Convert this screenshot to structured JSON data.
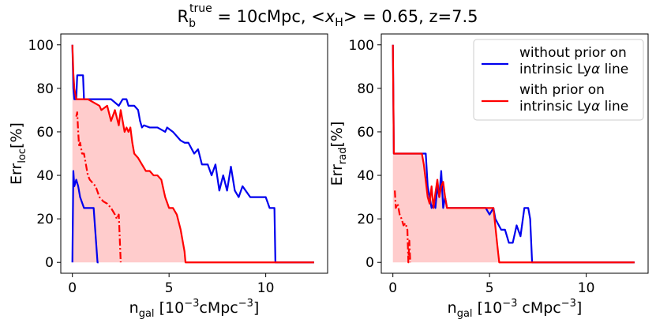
{
  "figure": {
    "title_parts": {
      "r": "R",
      "r_sub": "b",
      "r_sup": "true",
      "rest": " = 10cMpc, <",
      "x": "x",
      "x_sub": "H",
      "tail": "> = 0.65, z=7.5"
    }
  },
  "chart_data": [
    {
      "type": "line",
      "panel": "left",
      "ylabel_main": "Err",
      "ylabel_sub": "loc",
      "ylabel_unit": "[%]",
      "xlabel_main": "n",
      "xlabel_sub": "gal",
      "xlabel_unit": " [10",
      "xlabel_exp": "−3",
      "xlabel_unit2": "cMpc",
      "xlabel_exp2": "−3",
      "xlabel_close": "]",
      "xlim": [
        -0.6,
        13.2
      ],
      "ylim": [
        -5,
        105
      ],
      "xticks": [
        0,
        5,
        10
      ],
      "xtick_labels": [
        "0",
        "5",
        "10"
      ],
      "yticks": [
        0,
        20,
        40,
        60,
        80,
        100
      ],
      "ytick_labels": [
        "0",
        "20",
        "40",
        "60",
        "80",
        "100"
      ],
      "colors": {
        "without": "#0000ee",
        "with": "#ff0000",
        "fill": "#ffcccc"
      },
      "series": [
        {
          "style": "solid-blue-upper",
          "x": [
            0.0,
            0.05,
            0.1,
            0.2,
            0.25,
            0.3,
            0.55,
            0.6,
            1.0,
            1.05,
            1.6,
            2.0,
            2.4,
            2.6,
            2.8,
            2.9,
            3.2,
            3.4,
            3.5,
            3.6,
            3.7,
            4.0,
            4.4,
            4.8,
            4.9,
            5.2,
            5.6,
            5.8,
            6.0,
            6.3,
            6.5,
            6.7,
            6.9,
            7.0,
            7.2,
            7.4,
            7.6,
            7.8,
            8.0,
            8.2,
            8.4,
            8.6,
            8.8,
            9.2,
            9.6,
            10.0,
            10.2,
            10.45,
            10.5,
            12.5
          ],
          "y": [
            100,
            80,
            75,
            75,
            86,
            86,
            86,
            75,
            75,
            75,
            75,
            75,
            72,
            75,
            75,
            72,
            72,
            70,
            65,
            62,
            63,
            62,
            62,
            60,
            62,
            60,
            56,
            55,
            55,
            50,
            52,
            45,
            45,
            45,
            40,
            45,
            33,
            40,
            33,
            44,
            33,
            30,
            35,
            30,
            30,
            30,
            25,
            25,
            0,
            0
          ]
        },
        {
          "style": "solid-blue-lower",
          "x": [
            0.0,
            0.05,
            0.1,
            0.2,
            0.3,
            0.4,
            0.6,
            1.0,
            1.1,
            1.3,
            1.35
          ],
          "y": [
            0,
            42,
            35,
            38,
            35,
            30,
            25,
            25,
            25,
            0,
            0
          ]
        },
        {
          "style": "solid-red-upper",
          "x": [
            0.0,
            0.05,
            0.1,
            0.2,
            0.3,
            0.8,
            1.4,
            1.5,
            1.8,
            2.0,
            2.2,
            2.4,
            2.5,
            2.7,
            2.8,
            2.9,
            3.0,
            3.1,
            3.2,
            3.4,
            3.6,
            3.8,
            4.0,
            4.2,
            4.4,
            4.6,
            4.8,
            5.0,
            5.2,
            5.4,
            5.6,
            5.8,
            5.85,
            12.5
          ],
          "y": [
            100,
            87,
            80,
            75,
            75,
            75,
            72,
            70,
            72,
            65,
            70,
            63,
            70,
            60,
            62,
            60,
            62,
            55,
            50,
            48,
            45,
            42,
            42,
            40,
            40,
            38,
            30,
            25,
            25,
            22,
            15,
            5,
            0,
            0
          ]
        },
        {
          "style": "dashdot-red",
          "x": [
            0.2,
            0.25,
            0.3,
            0.35,
            0.4,
            0.5,
            0.6,
            0.7,
            0.8,
            0.9,
            1.0,
            1.1,
            1.2,
            1.4,
            1.6,
            1.8,
            2.0,
            2.2,
            2.3,
            2.4,
            2.5
          ],
          "y": [
            67,
            69,
            60,
            53,
            55,
            50,
            50,
            45,
            40,
            38,
            37,
            36,
            35,
            30,
            28,
            27,
            25,
            22,
            20,
            22,
            0
          ]
        }
      ],
      "fill_between": "solid-red-upper"
    },
    {
      "type": "line",
      "panel": "right",
      "ylabel_main": "Err",
      "ylabel_sub": "rad",
      "ylabel_unit": "[%]",
      "xlabel_main": "n",
      "xlabel_sub": "gal",
      "xlabel_unit": " [10",
      "xlabel_exp": "−3",
      "xlabel_unit2": " cMpc",
      "xlabel_exp2": "−3",
      "xlabel_close": "]",
      "xlim": [
        -0.6,
        13.2
      ],
      "ylim": [
        -5,
        105
      ],
      "xticks": [
        0,
        5,
        10
      ],
      "xtick_labels": [
        "0",
        "5",
        "10"
      ],
      "yticks": [
        0,
        20,
        40,
        60,
        80,
        100
      ],
      "ytick_labels": [
        "0",
        "20",
        "40",
        "60",
        "80",
        "100"
      ],
      "legend": {
        "placement": "top-right",
        "entries": [
          {
            "color": "#0000ee",
            "line1": "without prior on",
            "line2_a": "intrinsic Ly",
            "line2_b": "α",
            "line2_c": " line"
          },
          {
            "color": "#ff0000",
            "line1": "with prior on",
            "line2_a": "intrinsic Ly",
            "line2_b": "α",
            "line2_c": " line"
          }
        ]
      },
      "colors": {
        "without": "#0000ee",
        "with": "#ff0000",
        "fill": "#ffcccc"
      },
      "series": [
        {
          "style": "solid-blue-upper",
          "x": [
            0.0,
            0.05,
            1.5,
            1.7,
            1.8,
            2.0,
            2.1,
            2.2,
            2.3,
            2.4,
            2.5,
            2.6,
            2.7,
            2.8,
            3.0,
            3.2,
            3.4,
            4.0,
            4.8,
            5.0,
            5.2,
            5.3,
            5.6,
            5.8,
            6.0,
            6.2,
            6.4,
            6.6,
            6.8,
            7.0,
            7.1,
            7.2,
            12.5
          ],
          "y": [
            100,
            50,
            50,
            50,
            35,
            25,
            27,
            25,
            35,
            30,
            42,
            25,
            30,
            25,
            25,
            25,
            25,
            25,
            25,
            22,
            25,
            20,
            15,
            15,
            9,
            9,
            17,
            12,
            25,
            25,
            20,
            0,
            0
          ]
        },
        {
          "style": "solid-red-upper",
          "x": [
            0.0,
            0.05,
            1.5,
            1.6,
            1.8,
            1.9,
            2.0,
            2.1,
            2.2,
            2.3,
            2.4,
            2.5,
            2.6,
            2.7,
            2.8,
            3.0,
            3.2,
            3.4,
            3.6,
            4.0,
            4.4,
            4.6,
            4.8,
            5.0,
            5.2,
            5.4,
            5.5,
            12.5
          ],
          "y": [
            100,
            50,
            50,
            45,
            30,
            27,
            35,
            25,
            32,
            38,
            30,
            35,
            37,
            30,
            25,
            25,
            25,
            25,
            25,
            25,
            25,
            25,
            25,
            25,
            25,
            8,
            0,
            0
          ]
        },
        {
          "style": "dashdot-red",
          "x": [
            0.1,
            0.15,
            0.25,
            0.35,
            0.45,
            0.55,
            0.65,
            0.75,
            0.8,
            0.85,
            0.9
          ],
          "y": [
            33,
            25,
            27,
            22,
            20,
            17,
            18,
            15,
            0,
            10,
            0
          ]
        }
      ],
      "fill_between": "solid-red-upper"
    }
  ]
}
